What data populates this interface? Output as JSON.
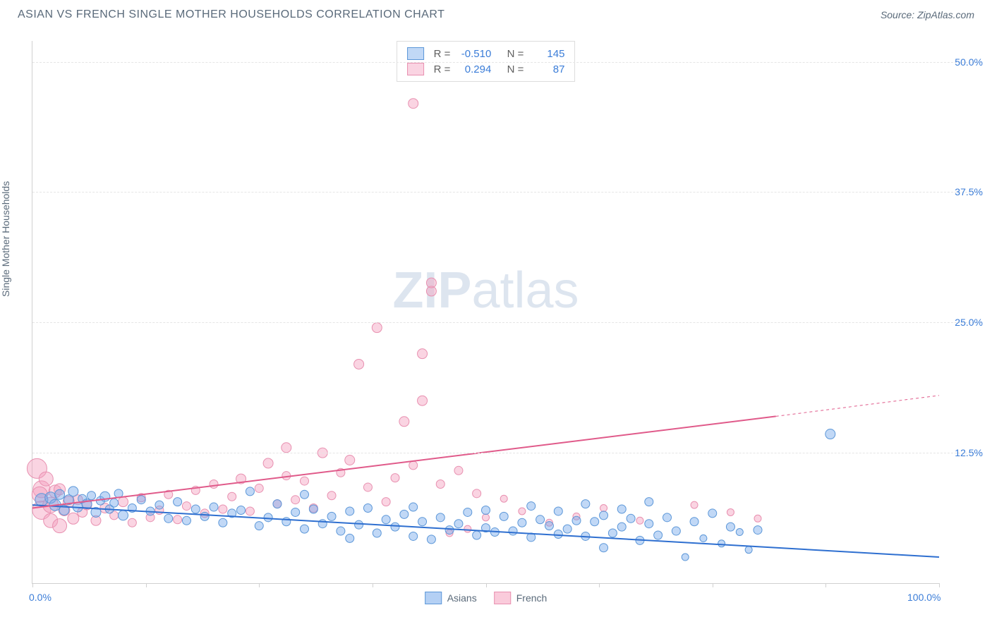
{
  "header": {
    "title": "ASIAN VS FRENCH SINGLE MOTHER HOUSEHOLDS CORRELATION CHART",
    "source": "Source: ZipAtlas.com"
  },
  "chart": {
    "type": "scatter",
    "y_axis_label": "Single Mother Households",
    "watermark": {
      "bold": "ZIP",
      "light": "atlas"
    },
    "xlim": [
      0,
      100
    ],
    "ylim": [
      0,
      52
    ],
    "x_ticks": [
      0,
      12.5,
      25,
      37.5,
      50,
      62.5,
      75,
      87.5,
      100
    ],
    "x_tick_labels": {
      "0": "0.0%",
      "100": "100.0%"
    },
    "y_grid": [
      12.5,
      25.0,
      37.5,
      50.0
    ],
    "y_tick_labels": [
      "12.5%",
      "25.0%",
      "37.5%",
      "50.0%"
    ],
    "background_color": "#ffffff",
    "grid_color": "#e5e5e5",
    "axis_color": "#d0d0d0",
    "series": [
      {
        "name": "Asians",
        "color_fill": "rgba(118,169,235,0.45)",
        "color_stroke": "#5c97d8",
        "marker_radius_min": 5,
        "marker_radius_max": 10,
        "regression": {
          "x1": 0,
          "y1": 7.5,
          "x2": 100,
          "y2": 2.5,
          "color": "#2e6fd0",
          "width": 2
        },
        "stats": {
          "R": "-0.510",
          "N": "145"
        },
        "points": [
          [
            1,
            8,
            9
          ],
          [
            2,
            8.2,
            8
          ],
          [
            2.5,
            7.5,
            8
          ],
          [
            3,
            8.5,
            7
          ],
          [
            3.5,
            7,
            7
          ],
          [
            4,
            8,
            7
          ],
          [
            4.5,
            8.8,
            7
          ],
          [
            5,
            7.3,
            7
          ],
          [
            5.5,
            8.1,
            6
          ],
          [
            6,
            7.6,
            7
          ],
          [
            6.5,
            8.4,
            6
          ],
          [
            7,
            6.8,
            7
          ],
          [
            7.5,
            7.9,
            6
          ],
          [
            8,
            8.3,
            7
          ],
          [
            8.5,
            7.1,
            6
          ],
          [
            9,
            7.7,
            6
          ],
          [
            9.5,
            8.6,
            6
          ],
          [
            10,
            6.5,
            7
          ],
          [
            11,
            7.2,
            6
          ],
          [
            12,
            8,
            6
          ],
          [
            13,
            6.9,
            6
          ],
          [
            14,
            7.5,
            6
          ],
          [
            15,
            6.2,
            6
          ],
          [
            16,
            7.8,
            6
          ],
          [
            17,
            6,
            6
          ],
          [
            18,
            7.1,
            6
          ],
          [
            19,
            6.4,
            6
          ],
          [
            20,
            7.3,
            6
          ],
          [
            21,
            5.8,
            6
          ],
          [
            22,
            6.7,
            6
          ],
          [
            23,
            7,
            6
          ],
          [
            24,
            8.8,
            6
          ],
          [
            25,
            5.5,
            6
          ],
          [
            26,
            6.3,
            6
          ],
          [
            27,
            7.6,
            6
          ],
          [
            28,
            5.9,
            6
          ],
          [
            29,
            6.8,
            6
          ],
          [
            30,
            5.2,
            6
          ],
          [
            30,
            8.5,
            6
          ],
          [
            31,
            7.1,
            6
          ],
          [
            32,
            5.7,
            6
          ],
          [
            33,
            6.4,
            6
          ],
          [
            34,
            5,
            6
          ],
          [
            35,
            6.9,
            6
          ],
          [
            35,
            4.3,
            6
          ],
          [
            36,
            5.6,
            6
          ],
          [
            37,
            7.2,
            6
          ],
          [
            38,
            4.8,
            6
          ],
          [
            39,
            6.1,
            6
          ],
          [
            40,
            5.4,
            6
          ],
          [
            41,
            6.6,
            6
          ],
          [
            42,
            4.5,
            6
          ],
          [
            42,
            7.3,
            6
          ],
          [
            43,
            5.9,
            6
          ],
          [
            44,
            4.2,
            6
          ],
          [
            45,
            6.3,
            6
          ],
          [
            46,
            5.1,
            6
          ],
          [
            47,
            5.7,
            6
          ],
          [
            48,
            6.8,
            6
          ],
          [
            49,
            4.6,
            6
          ],
          [
            50,
            5.3,
            6
          ],
          [
            50,
            7,
            6
          ],
          [
            51,
            4.9,
            6
          ],
          [
            52,
            6.4,
            6
          ],
          [
            53,
            5,
            6
          ],
          [
            54,
            5.8,
            6
          ],
          [
            55,
            7.4,
            6
          ],
          [
            55,
            4.4,
            6
          ],
          [
            56,
            6.1,
            6
          ],
          [
            57,
            5.5,
            6
          ],
          [
            58,
            4.7,
            6
          ],
          [
            58,
            6.9,
            6
          ],
          [
            59,
            5.2,
            6
          ],
          [
            60,
            6,
            6
          ],
          [
            61,
            7.6,
            6
          ],
          [
            61,
            4.5,
            6
          ],
          [
            62,
            5.9,
            6
          ],
          [
            63,
            6.5,
            6
          ],
          [
            63,
            3.4,
            6
          ],
          [
            64,
            4.8,
            6
          ],
          [
            65,
            7.1,
            6
          ],
          [
            65,
            5.4,
            6
          ],
          [
            66,
            6.2,
            6
          ],
          [
            67,
            4.1,
            6
          ],
          [
            68,
            5.7,
            6
          ],
          [
            68,
            7.8,
            6
          ],
          [
            69,
            4.6,
            6
          ],
          [
            70,
            6.3,
            6
          ],
          [
            71,
            5,
            6
          ],
          [
            72,
            2.5,
            5
          ],
          [
            73,
            5.9,
            6
          ],
          [
            74,
            4.3,
            5
          ],
          [
            75,
            6.7,
            6
          ],
          [
            76,
            3.8,
            5
          ],
          [
            77,
            5.4,
            6
          ],
          [
            78,
            4.9,
            5
          ],
          [
            79,
            3.2,
            5
          ],
          [
            80,
            5.1,
            6
          ],
          [
            88,
            14.3,
            7
          ]
        ]
      },
      {
        "name": "French",
        "color_fill": "rgba(245,160,190,0.45)",
        "color_stroke": "#e890b0",
        "marker_radius_min": 5,
        "marker_radius_max": 14,
        "regression": {
          "x1": 0,
          "y1": 7.2,
          "x2": 82,
          "y2": 16,
          "solid_to": 82,
          "dash_to_x": 100,
          "dash_to_y": 18,
          "color": "#e05a8a",
          "width": 2
        },
        "stats": {
          "R": "0.294",
          "N": "87"
        },
        "points": [
          [
            0.5,
            11,
            14
          ],
          [
            1,
            9,
            12
          ],
          [
            1,
            7,
            13
          ],
          [
            0.8,
            8.5,
            11
          ],
          [
            1.5,
            10,
            10
          ],
          [
            2,
            7.5,
            11
          ],
          [
            2,
            6,
            10
          ],
          [
            2.5,
            8.8,
            9
          ],
          [
            3,
            5.5,
            10
          ],
          [
            3,
            9,
            8
          ],
          [
            3.5,
            7,
            8
          ],
          [
            4,
            7.8,
            8
          ],
          [
            4.5,
            6.2,
            8
          ],
          [
            5,
            8,
            7
          ],
          [
            5.5,
            6.8,
            7
          ],
          [
            6,
            7.5,
            7
          ],
          [
            7,
            6,
            7
          ],
          [
            8,
            7.2,
            7
          ],
          [
            9,
            6.5,
            6
          ],
          [
            10,
            7.8,
            7
          ],
          [
            11,
            5.8,
            6
          ],
          [
            12,
            8.2,
            6
          ],
          [
            13,
            6.3,
            6
          ],
          [
            14,
            7,
            6
          ],
          [
            15,
            8.5,
            6
          ],
          [
            16,
            6.1,
            6
          ],
          [
            17,
            7.4,
            6
          ],
          [
            18,
            8.9,
            6
          ],
          [
            19,
            6.7,
            6
          ],
          [
            20,
            9.5,
            6
          ],
          [
            21,
            7.1,
            6
          ],
          [
            22,
            8.3,
            6
          ],
          [
            23,
            10,
            7
          ],
          [
            24,
            6.9,
            6
          ],
          [
            25,
            9.1,
            6
          ],
          [
            26,
            11.5,
            7
          ],
          [
            27,
            7.6,
            6
          ],
          [
            28,
            10.3,
            6
          ],
          [
            28,
            13,
            7
          ],
          [
            29,
            8,
            6
          ],
          [
            30,
            9.8,
            6
          ],
          [
            31,
            7.2,
            6
          ],
          [
            32,
            12.5,
            7
          ],
          [
            33,
            8.4,
            6
          ],
          [
            34,
            10.6,
            6
          ],
          [
            35,
            11.8,
            7
          ],
          [
            36,
            21,
            7
          ],
          [
            37,
            9.2,
            6
          ],
          [
            38,
            24.5,
            7
          ],
          [
            39,
            7.8,
            6
          ],
          [
            40,
            10.1,
            6
          ],
          [
            41,
            15.5,
            7
          ],
          [
            42,
            11.3,
            6
          ],
          [
            43,
            17.5,
            7
          ],
          [
            43,
            22,
            7
          ],
          [
            44,
            28,
            7
          ],
          [
            44,
            28.8,
            7
          ],
          [
            45,
            9.5,
            6
          ],
          [
            46,
            4.8,
            5
          ],
          [
            47,
            10.8,
            6
          ],
          [
            48,
            5.2,
            5
          ],
          [
            49,
            8.6,
            6
          ],
          [
            50,
            6.3,
            5
          ],
          [
            52,
            8.1,
            5
          ],
          [
            54,
            6.9,
            5
          ],
          [
            57,
            5.8,
            5
          ],
          [
            60,
            6.4,
            5
          ],
          [
            63,
            7.2,
            5
          ],
          [
            67,
            6,
            5
          ],
          [
            73,
            7.5,
            5
          ],
          [
            77,
            6.8,
            5
          ],
          [
            80,
            6.2,
            5
          ],
          [
            42,
            46,
            7
          ]
        ]
      }
    ],
    "legend_bottom": [
      {
        "label": "Asians",
        "fill": "rgba(118,169,235,0.55)",
        "stroke": "#5c97d8"
      },
      {
        "label": "French",
        "fill": "rgba(245,160,190,0.55)",
        "stroke": "#e890b0"
      }
    ]
  }
}
